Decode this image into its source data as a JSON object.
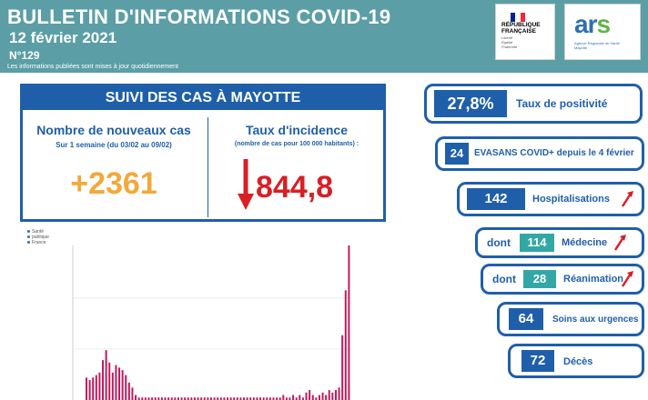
{
  "header": {
    "title": "BULLETIN D'INFORMATIONS COVID-19",
    "date": "12 février 2021",
    "number": "N°129",
    "note": "Les informations publiées sont mises à jour quotidiennement"
  },
  "logos": {
    "republique": {
      "line1": "RÉPUBLIQUE",
      "line2": "FRANÇAISE",
      "motto1": "Liberté",
      "motto2": "Égalité",
      "motto3": "Fraternité"
    },
    "ars": {
      "word_a": "ar",
      "word_s": "s",
      "sub": "Agence Régionale de Santé Mayotte"
    },
    "spf": {
      "line1": "Santé",
      "line2": "publique",
      "line3": "France"
    }
  },
  "suivi": {
    "title": "SUIVI DES CAS À MAYOTTE",
    "nouveaux_title": "Nombre de nouveaux cas",
    "nouveaux_sub": "Sur 1 semaine (du 03/02 au 09/02)",
    "nouveaux_value": "+2361",
    "incidence_title": "Taux d'incidence",
    "incidence_sub": "(nombre de cas pour 100 000 habitants) :",
    "incidence_value": "844,8",
    "colors": {
      "blue": "#1f5faa",
      "orange": "#f2a93b",
      "red": "#d81f26"
    }
  },
  "indicators": {
    "positivite": {
      "value": "27,8%",
      "label": "Taux de positivité"
    },
    "evasans": {
      "value": "24",
      "label": "EVASANS COVID+ depuis le 4 février"
    },
    "hospitalisations": {
      "value": "142",
      "label": "Hospitalisations",
      "trend": "up"
    },
    "medecine": {
      "prefix": "dont",
      "value": "114",
      "label": "Médecine",
      "trend": "up"
    },
    "reanimation": {
      "prefix": "dont",
      "value": "28",
      "label": "Réanimation",
      "trend": "up"
    },
    "urgences": {
      "value": "64",
      "label": "Soins aux urgences"
    },
    "deces": {
      "value": "72",
      "label": "Décès"
    }
  },
  "chart_data": {
    "type": "bar",
    "series_color": "#c2185b",
    "values": [
      9,
      8,
      9,
      10,
      11,
      16,
      20,
      15,
      11,
      14,
      13,
      12,
      10,
      7,
      5,
      2,
      1,
      1,
      1,
      1,
      1,
      1,
      1,
      1,
      1,
      1,
      1,
      1,
      1,
      1,
      1,
      1,
      1,
      1,
      1,
      1,
      1,
      1,
      1,
      1,
      1,
      1,
      1,
      1,
      1,
      1,
      1,
      1,
      1,
      1,
      1,
      1,
      1,
      1,
      1,
      1,
      1,
      1,
      1,
      1,
      2,
      1,
      1,
      2,
      1,
      2,
      1,
      3,
      4,
      2,
      1,
      2,
      3,
      2,
      4,
      3,
      4,
      5,
      26,
      44,
      62
    ],
    "ylim": [
      0,
      62
    ]
  }
}
